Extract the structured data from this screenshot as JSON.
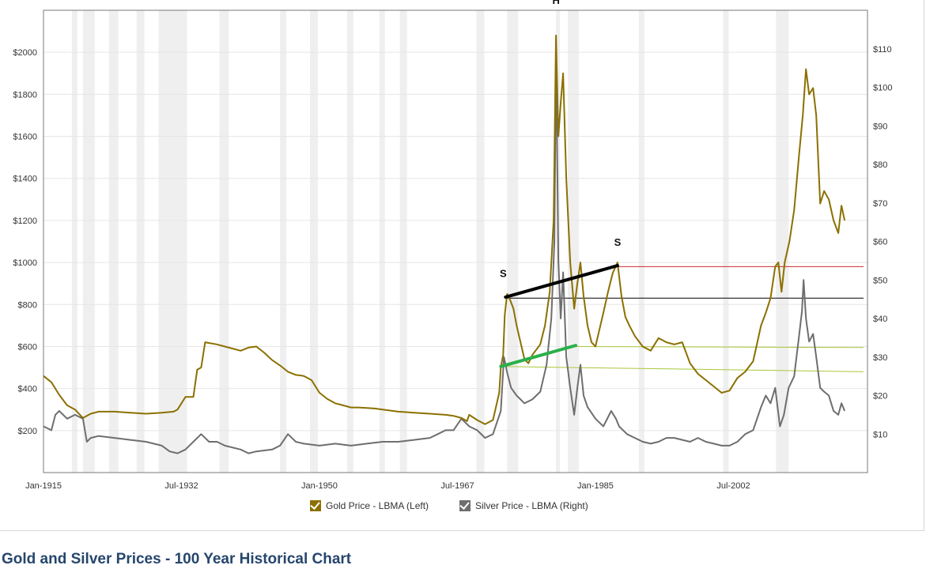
{
  "title": "Gold and Silver Prices - 100 Year Historical Chart",
  "legend": [
    {
      "label": "Gold Price - LBMA (Left)",
      "color": "#8b7000"
    },
    {
      "label": "Silver Price - LBMA (Right)",
      "color": "#6e6e6e"
    }
  ],
  "annotations": [
    {
      "label": "S",
      "x": 1973.3,
      "y_left": 930
    },
    {
      "label": "H",
      "x": 1980.0,
      "y_left": 2230
    },
    {
      "label": "S",
      "x": 1987.8,
      "y_left": 1080
    }
  ],
  "chart_data": {
    "type": "line",
    "x_tick_labels": [
      "Jan-1915",
      "Jul-1932",
      "Jan-1950",
      "Jul-1967",
      "Jan-1985",
      "Jul-2002"
    ],
    "x_ticks": [
      1915,
      1932.5,
      1950,
      1967.5,
      1985,
      2002.5
    ],
    "xlim": [
      1915,
      2019.5
    ],
    "left_axis": {
      "ticks": [
        200,
        400,
        600,
        800,
        1000,
        1200,
        1400,
        1600,
        1800,
        2000
      ],
      "tick_labels": [
        "$200",
        "$400",
        "$600",
        "$800",
        "$1000",
        "$1200",
        "$1400",
        "$1600",
        "$1800",
        "$2000"
      ],
      "ylim": [
        0,
        2200
      ]
    },
    "right_axis": {
      "ticks": [
        10,
        20,
        30,
        40,
        50,
        60,
        70,
        80,
        90,
        100,
        110
      ],
      "tick_labels": [
        "$10",
        "$20",
        "$30",
        "$40",
        "$50",
        "$60",
        "$70",
        "$80",
        "$90",
        "$100",
        "$110"
      ],
      "ylim": [
        0,
        120
      ]
    },
    "grid": true,
    "recession_shading": [
      [
        1918.6,
        1919.3
      ],
      [
        1920,
        1921.5
      ],
      [
        1923.3,
        1924.5
      ],
      [
        1926.8,
        1927.8
      ],
      [
        1929.6,
        1933.2
      ],
      [
        1937.3,
        1938.5
      ],
      [
        1945,
        1945.8
      ],
      [
        1948.8,
        1949.8
      ],
      [
        1953.5,
        1954.3
      ],
      [
        1957.6,
        1958.3
      ],
      [
        1960.2,
        1961.1
      ],
      [
        1969.9,
        1970.9
      ],
      [
        1973.8,
        1975.2
      ],
      [
        1980,
        1980.5
      ],
      [
        1981.5,
        1982.9
      ],
      [
        1990.5,
        1991.2
      ],
      [
        2001.2,
        2001.9
      ],
      [
        2007.9,
        2009.5
      ]
    ],
    "series": [
      {
        "name": "Gold Price - LBMA (Left)",
        "axis": "left",
        "points": [
          [
            1915,
            460
          ],
          [
            1916,
            430
          ],
          [
            1917,
            370
          ],
          [
            1918,
            320
          ],
          [
            1919,
            300
          ],
          [
            1920,
            260
          ],
          [
            1921,
            280
          ],
          [
            1922,
            290
          ],
          [
            1924,
            290
          ],
          [
            1926,
            285
          ],
          [
            1928,
            280
          ],
          [
            1930,
            285
          ],
          [
            1931.5,
            290
          ],
          [
            1932,
            300
          ],
          [
            1932.5,
            330
          ],
          [
            1933,
            360
          ],
          [
            1934,
            360
          ],
          [
            1934.5,
            490
          ],
          [
            1935,
            500
          ],
          [
            1935.5,
            620
          ],
          [
            1937,
            610
          ],
          [
            1938,
            600
          ],
          [
            1939,
            590
          ],
          [
            1940,
            580
          ],
          [
            1941,
            595
          ],
          [
            1942,
            600
          ],
          [
            1943,
            570
          ],
          [
            1944,
            535
          ],
          [
            1945,
            510
          ],
          [
            1946,
            480
          ],
          [
            1947,
            465
          ],
          [
            1948,
            460
          ],
          [
            1949,
            440
          ],
          [
            1950,
            380
          ],
          [
            1951,
            350
          ],
          [
            1952,
            330
          ],
          [
            1953,
            320
          ],
          [
            1954,
            310
          ],
          [
            1955,
            310
          ],
          [
            1957,
            305
          ],
          [
            1958,
            300
          ],
          [
            1960,
            290
          ],
          [
            1962,
            285
          ],
          [
            1964,
            280
          ],
          [
            1966,
            275
          ],
          [
            1967,
            270
          ],
          [
            1968,
            260
          ],
          [
            1968.7,
            245
          ],
          [
            1969,
            275
          ],
          [
            1970,
            250
          ],
          [
            1971,
            230
          ],
          [
            1972,
            250
          ],
          [
            1972.8,
            380
          ],
          [
            1973,
            500
          ],
          [
            1973.3,
            560
          ],
          [
            1973.5,
            750
          ],
          [
            1973.8,
            850
          ],
          [
            1974.2,
            820
          ],
          [
            1974.6,
            780
          ],
          [
            1975,
            700
          ],
          [
            1976,
            540
          ],
          [
            1976.5,
            520
          ],
          [
            1977,
            560
          ],
          [
            1978,
            610
          ],
          [
            1978.6,
            700
          ],
          [
            1979.2,
            860
          ],
          [
            1979.7,
            1200
          ],
          [
            1980.0,
            2080
          ],
          [
            1980.3,
            1600
          ],
          [
            1980.6,
            1760
          ],
          [
            1980.9,
            1900
          ],
          [
            1981.3,
            1400
          ],
          [
            1981.8,
            1000
          ],
          [
            1982.3,
            780
          ],
          [
            1982.7,
            900
          ],
          [
            1983.1,
            1000
          ],
          [
            1983.5,
            840
          ],
          [
            1984,
            700
          ],
          [
            1984.5,
            620
          ],
          [
            1985,
            600
          ],
          [
            1985.5,
            680
          ],
          [
            1986,
            760
          ],
          [
            1986.6,
            860
          ],
          [
            1987.2,
            950
          ],
          [
            1987.8,
            1000
          ],
          [
            1988.3,
            840
          ],
          [
            1988.8,
            740
          ],
          [
            1989.3,
            700
          ],
          [
            1990,
            650
          ],
          [
            1991,
            600
          ],
          [
            1992,
            580
          ],
          [
            1993,
            640
          ],
          [
            1994,
            620
          ],
          [
            1995,
            610
          ],
          [
            1996,
            620
          ],
          [
            1997,
            520
          ],
          [
            1998,
            470
          ],
          [
            1999,
            440
          ],
          [
            2000,
            410
          ],
          [
            2001,
            380
          ],
          [
            2002,
            390
          ],
          [
            2003,
            450
          ],
          [
            2004,
            480
          ],
          [
            2005,
            530
          ],
          [
            2006,
            700
          ],
          [
            2006.6,
            760
          ],
          [
            2007.2,
            830
          ],
          [
            2007.8,
            980
          ],
          [
            2008.2,
            1000
          ],
          [
            2008.6,
            860
          ],
          [
            2009,
            1000
          ],
          [
            2009.6,
            1100
          ],
          [
            2010.2,
            1250
          ],
          [
            2010.8,
            1500
          ],
          [
            2011.3,
            1700
          ],
          [
            2011.7,
            1920
          ],
          [
            2012.1,
            1800
          ],
          [
            2012.6,
            1830
          ],
          [
            2013,
            1700
          ],
          [
            2013.5,
            1280
          ],
          [
            2014,
            1340
          ],
          [
            2014.6,
            1300
          ],
          [
            2015.2,
            1200
          ],
          [
            2015.8,
            1140
          ],
          [
            2016.2,
            1270
          ],
          [
            2016.6,
            1200
          ]
        ]
      },
      {
        "name": "Silver Price - LBMA (Right)",
        "axis": "right",
        "points": [
          [
            1915,
            12
          ],
          [
            1916,
            11
          ],
          [
            1916.5,
            15
          ],
          [
            1917,
            16
          ],
          [
            1918,
            14
          ],
          [
            1919,
            15
          ],
          [
            1920,
            14
          ],
          [
            1920.5,
            8
          ],
          [
            1921,
            9
          ],
          [
            1922,
            9.5
          ],
          [
            1924,
            9
          ],
          [
            1926,
            8.5
          ],
          [
            1928,
            8
          ],
          [
            1930,
            7
          ],
          [
            1931,
            5.5
          ],
          [
            1932,
            5
          ],
          [
            1933,
            6
          ],
          [
            1934,
            8
          ],
          [
            1935,
            10
          ],
          [
            1936,
            8
          ],
          [
            1937,
            8
          ],
          [
            1938,
            7
          ],
          [
            1940,
            6
          ],
          [
            1941,
            5
          ],
          [
            1942,
            5.5
          ],
          [
            1944,
            6
          ],
          [
            1945,
            7
          ],
          [
            1946,
            10
          ],
          [
            1947,
            8
          ],
          [
            1948,
            7.5
          ],
          [
            1950,
            7
          ],
          [
            1952,
            7.5
          ],
          [
            1954,
            7
          ],
          [
            1956,
            7.5
          ],
          [
            1958,
            8
          ],
          [
            1960,
            8
          ],
          [
            1962,
            8.5
          ],
          [
            1964,
            9
          ],
          [
            1965,
            10
          ],
          [
            1966,
            11
          ],
          [
            1967,
            11
          ],
          [
            1968,
            14
          ],
          [
            1969,
            12
          ],
          [
            1970,
            11
          ],
          [
            1971,
            9
          ],
          [
            1972,
            10
          ],
          [
            1973,
            16
          ],
          [
            1973.4,
            30
          ],
          [
            1973.8,
            26
          ],
          [
            1974.3,
            22
          ],
          [
            1975,
            20
          ],
          [
            1976,
            18
          ],
          [
            1977,
            19
          ],
          [
            1978,
            21
          ],
          [
            1978.8,
            28
          ],
          [
            1979.4,
            40
          ],
          [
            1979.8,
            60
          ],
          [
            1980.0,
            110
          ],
          [
            1980.3,
            55
          ],
          [
            1980.6,
            40
          ],
          [
            1980.9,
            52
          ],
          [
            1981.3,
            30
          ],
          [
            1981.8,
            22
          ],
          [
            1982.3,
            15
          ],
          [
            1982.7,
            22
          ],
          [
            1983.1,
            28
          ],
          [
            1983.5,
            20
          ],
          [
            1984,
            17
          ],
          [
            1985,
            14
          ],
          [
            1986,
            12
          ],
          [
            1987,
            16
          ],
          [
            1987.6,
            14
          ],
          [
            1988,
            12
          ],
          [
            1989,
            10
          ],
          [
            1990,
            9
          ],
          [
            1991,
            8
          ],
          [
            1992,
            7.5
          ],
          [
            1993,
            8
          ],
          [
            1994,
            9
          ],
          [
            1995,
            9
          ],
          [
            1996,
            8.5
          ],
          [
            1997,
            8
          ],
          [
            1998,
            9
          ],
          [
            1999,
            8
          ],
          [
            2000,
            7.5
          ],
          [
            2001,
            7
          ],
          [
            2002,
            7
          ],
          [
            2003,
            8
          ],
          [
            2004,
            10
          ],
          [
            2005,
            11
          ],
          [
            2006,
            17
          ],
          [
            2006.6,
            20
          ],
          [
            2007.2,
            18
          ],
          [
            2007.8,
            22
          ],
          [
            2008.4,
            12
          ],
          [
            2008.9,
            15
          ],
          [
            2009.5,
            22
          ],
          [
            2010.2,
            25
          ],
          [
            2010.8,
            35
          ],
          [
            2011.2,
            42
          ],
          [
            2011.4,
            50
          ],
          [
            2011.7,
            40
          ],
          [
            2012.1,
            34
          ],
          [
            2012.6,
            36
          ],
          [
            2013,
            30
          ],
          [
            2013.5,
            22
          ],
          [
            2014,
            21
          ],
          [
            2014.6,
            20
          ],
          [
            2015.2,
            16
          ],
          [
            2015.8,
            15
          ],
          [
            2016.2,
            18
          ],
          [
            2016.6,
            16
          ]
        ]
      }
    ],
    "reference_lines": [
      {
        "color": "#cc2b2b",
        "from": [
          1987.8,
          980
        ],
        "to": [
          2019,
          980
        ],
        "axis": "left"
      },
      {
        "color": "#000000",
        "from": [
          1973.6,
          830
        ],
        "to": [
          2019,
          830
        ],
        "axis": "left"
      },
      {
        "color": "#a8c83a",
        "from": [
          1982.5,
          600
        ],
        "to": [
          2019,
          595
        ],
        "axis": "left"
      },
      {
        "color": "#a8c83a",
        "from": [
          1973.0,
          505
        ],
        "to": [
          2019,
          480
        ],
        "axis": "left"
      }
    ],
    "trend_lines": [
      {
        "color": "#000000",
        "from": [
          1973.6,
          835
        ],
        "to": [
          1987.8,
          985
        ],
        "axis": "left",
        "width": 4
      },
      {
        "color": "#2bb04a",
        "from": [
          1973.0,
          505
        ],
        "to": [
          1982.5,
          605
        ],
        "axis": "left",
        "width": 4
      }
    ]
  }
}
